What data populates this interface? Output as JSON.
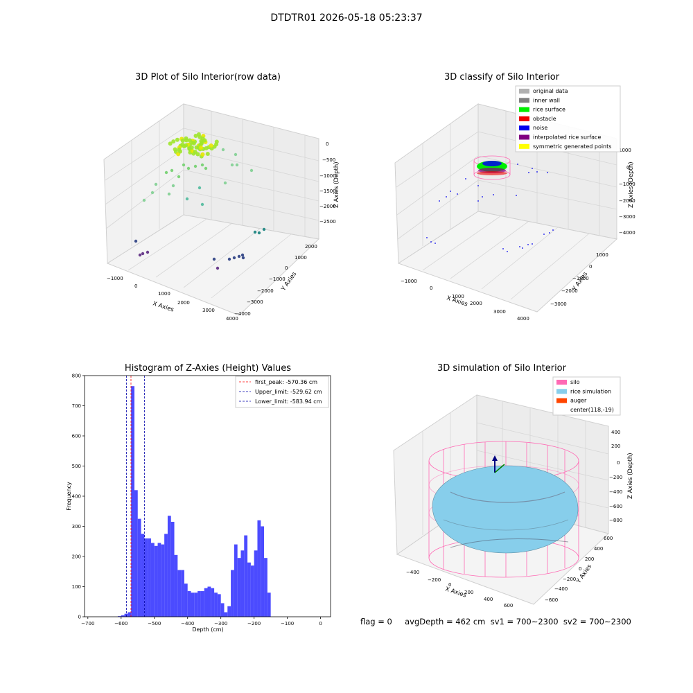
{
  "suptitle": "DTDTR01 2026-05-18 05:23:37",
  "panels": {
    "p1": {
      "title": "3D Plot of Silo Interior(row data)",
      "xlabel": "X Axies",
      "ylabel": "Y Axies",
      "zlabel": "Z Axies (Depth)",
      "xticks": [
        "−1000",
        "0",
        "1000",
        "2000",
        "3000",
        "4000"
      ],
      "yticks": [
        "2000",
        "1000",
        "0",
        "−1000",
        "−2000",
        "−3000",
        "−4000"
      ],
      "zticks": [
        "0",
        "−500",
        "−1000",
        "−1500",
        "−2000",
        "−2500"
      ]
    },
    "p2": {
      "title": "3D classify of Silo Interior",
      "xlabel": "X Axies",
      "ylabel": "Y Axies",
      "zlabel": "Z Axies (Depth)",
      "xticks": [
        "−1000",
        "0",
        "1000",
        "2000",
        "3000",
        "4000"
      ],
      "yticks": [
        "1000",
        "0",
        "−1000",
        "−2000",
        "−3000"
      ],
      "zticks": [
        "1000",
        "0",
        "−1000",
        "−2000",
        "−3000",
        "−4000"
      ],
      "legend": [
        {
          "label": "original data",
          "color": "#b0b0b0"
        },
        {
          "label": "inner wall",
          "color": "#808080"
        },
        {
          "label": "rice surface",
          "color": "#00ee00"
        },
        {
          "label": "obstacle",
          "color": "#ee0000"
        },
        {
          "label": "noise",
          "color": "#0000ee"
        },
        {
          "label": "interpolated rice surface",
          "color": "#800080"
        },
        {
          "label": "symmetric generated points",
          "color": "#ffff00"
        }
      ]
    },
    "p3": {
      "title": "Histogram of Z-Axies (Height) Values",
      "xlabel": "Depth (cm)",
      "ylabel": "Frequency",
      "legend": [
        {
          "label": "first_peak: -570.36 cm",
          "color": "#ff0000"
        },
        {
          "label": "Upper_limit: -529.62 cm",
          "color": "#0000aa"
        },
        {
          "label": "Lower_limit: -583.94 cm",
          "color": "#0000aa"
        }
      ]
    },
    "p4": {
      "title": "3D simulation of Silo Interior",
      "xlabel": "X Axies",
      "ylabel": "Y Axies",
      "zlabel": "Z Axies (Depth)",
      "xticks": [
        "−400",
        "−200",
        "0",
        "200",
        "400",
        "600"
      ],
      "yticks": [
        "600",
        "400",
        "200",
        "0",
        "−200",
        "−400",
        "−600"
      ],
      "zticks": [
        "400",
        "200",
        "0",
        "−200",
        "−400",
        "−600",
        "−800"
      ],
      "legend": [
        {
          "label": "silo",
          "color": "#ff69b4"
        },
        {
          "label": "rice simulation",
          "color": "#87ceeb"
        },
        {
          "label": "auger",
          "color": "#ff4500"
        },
        {
          "label": "center(118,-19)",
          "color": ""
        }
      ]
    }
  },
  "footer": "flag = 0     avgDepth = 462 cm  sv1 = 700~2300  sv2 = 700~2300",
  "chart_data": [
    {
      "type": "histogram",
      "title": "Histogram of Z-Axies (Height) Values",
      "xlabel": "Depth (cm)",
      "ylabel": "Frequency",
      "xlim": [
        -710,
        30
      ],
      "ylim": [
        0,
        800
      ],
      "bin_width": 10,
      "xticks": [
        -700,
        -600,
        -500,
        -400,
        -300,
        -200,
        -100,
        0
      ],
      "yticks": [
        0,
        100,
        200,
        300,
        400,
        500,
        600,
        700,
        800
      ],
      "bins": [
        [
          -610,
          2
        ],
        [
          -600,
          5
        ],
        [
          -590,
          10
        ],
        [
          -580,
          15
        ],
        [
          -570,
          765
        ],
        [
          -560,
          420
        ],
        [
          -550,
          325
        ],
        [
          -540,
          275
        ],
        [
          -530,
          260
        ],
        [
          -520,
          260
        ],
        [
          -510,
          245
        ],
        [
          -500,
          235
        ],
        [
          -490,
          245
        ],
        [
          -480,
          240
        ],
        [
          -470,
          275
        ],
        [
          -460,
          335
        ],
        [
          -450,
          315
        ],
        [
          -440,
          205
        ],
        [
          -430,
          155
        ],
        [
          -420,
          155
        ],
        [
          -410,
          110
        ],
        [
          -400,
          85
        ],
        [
          -390,
          80
        ],
        [
          -380,
          80
        ],
        [
          -370,
          85
        ],
        [
          -360,
          85
        ],
        [
          -350,
          95
        ],
        [
          -340,
          100
        ],
        [
          -330,
          95
        ],
        [
          -320,
          80
        ],
        [
          -310,
          75
        ],
        [
          -300,
          45
        ],
        [
          -290,
          15
        ],
        [
          -280,
          35
        ],
        [
          -270,
          155
        ],
        [
          -260,
          240
        ],
        [
          -250,
          195
        ],
        [
          -240,
          220
        ],
        [
          -230,
          270
        ],
        [
          -220,
          180
        ],
        [
          -210,
          170
        ],
        [
          -200,
          220
        ],
        [
          -190,
          320
        ],
        [
          -180,
          300
        ],
        [
          -170,
          195
        ],
        [
          -160,
          80
        ]
      ],
      "vlines": [
        {
          "name": "first_peak",
          "x": -570.36,
          "color": "#ff0000"
        },
        {
          "name": "Upper_limit",
          "x": -529.62,
          "color": "#0000aa"
        },
        {
          "name": "Lower_limit",
          "x": -583.94,
          "color": "#0000aa"
        }
      ],
      "bar_color": "#4b4bff"
    },
    {
      "type": "scatter3d",
      "title": "3D Plot of Silo Interior(row data)"
    },
    {
      "type": "scatter3d",
      "title": "3D classify of Silo Interior"
    },
    {
      "type": "surface3d",
      "title": "3D simulation of Silo Interior"
    }
  ]
}
